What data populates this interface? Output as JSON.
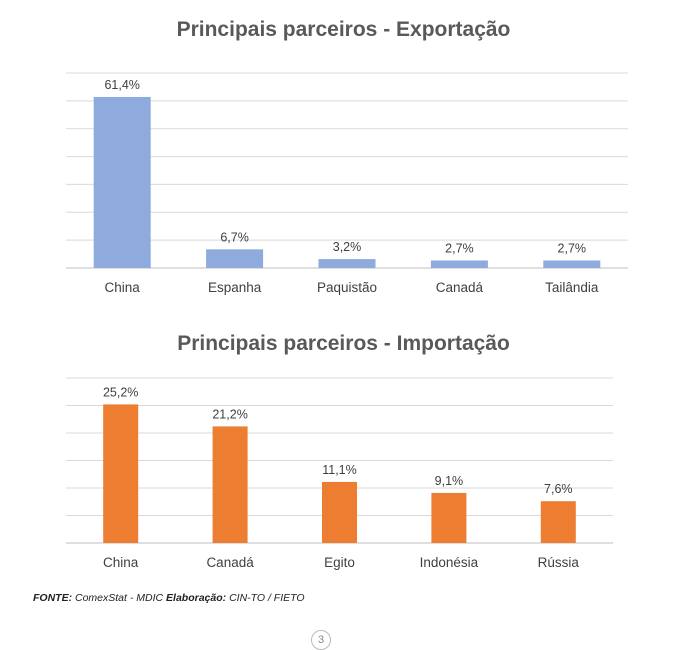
{
  "colors": {
    "export_bar": "#8faadc",
    "import_bar": "#ed7d31",
    "grid": "#d9d9d9"
  },
  "chart_data": [
    {
      "type": "bar",
      "title": "Principais parceiros - Exportação",
      "categories": [
        "China",
        "Espanha",
        "Paquistão",
        "Canadá",
        "Tailândia"
      ],
      "values": [
        61.4,
        6.7,
        3.2,
        2.7,
        2.7
      ],
      "data_labels": [
        "61,4%",
        "6,7%",
        "3,2%",
        "2,7%",
        "2,7%"
      ],
      "ylim": [
        0,
        70
      ],
      "grid": true
    },
    {
      "type": "bar",
      "title": "Principais parceiros - Importação",
      "categories": [
        "China",
        "Canadá",
        "Egito",
        "Indonésia",
        "Rússia"
      ],
      "values": [
        25.2,
        21.2,
        11.1,
        9.1,
        7.6
      ],
      "data_labels": [
        "25,2%",
        "21,2%",
        "11,1%",
        "9,1%",
        "7,6%"
      ],
      "ylim": [
        0,
        30
      ],
      "grid": true
    }
  ],
  "footer": {
    "fonte_label": "FONTE:",
    "fonte_value": "ComexStat - MDIC",
    "elaboracao_label": "Elaboração:",
    "elaboracao_value": "CIN-TO / FIETO"
  },
  "page_number": "3"
}
